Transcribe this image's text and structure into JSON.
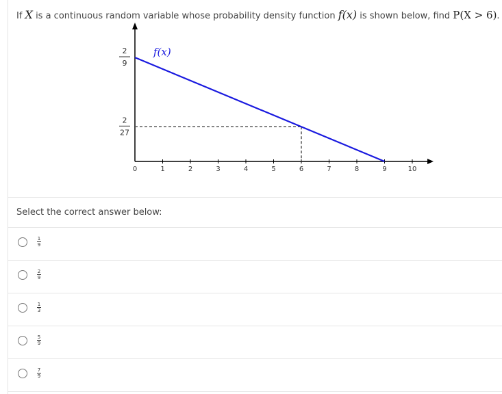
{
  "question": {
    "prefix": "If ",
    "var": "X",
    "middle": " is a continuous random variable whose probability density function ",
    "fx": "f(x)",
    "suffix_a": " is shown below, find ",
    "prob": "P(X > 6)",
    "suffix_b": "."
  },
  "chart_data": {
    "type": "line",
    "curve_label": "f(x)",
    "x_ticks": [
      "0",
      "1",
      "2",
      "3",
      "4",
      "5",
      "6",
      "7",
      "8",
      "9",
      "10"
    ],
    "xlim": [
      0,
      10
    ],
    "y_ticks": [
      {
        "value": 0.2222,
        "num": "2",
        "den": "9"
      },
      {
        "value": 0.0741,
        "num": "2",
        "den": "27"
      }
    ],
    "series": [
      {
        "points": [
          [
            0,
            0.2222
          ],
          [
            9,
            0
          ]
        ]
      }
    ],
    "reference": {
      "x": 6,
      "y": 0.0741
    },
    "colors": {
      "line": "#1a1adf",
      "axis": "#000000",
      "dashed": "#555555"
    }
  },
  "prompt": "Select the correct answer below:",
  "choices": [
    {
      "num": "1",
      "den": "9"
    },
    {
      "num": "2",
      "den": "9"
    },
    {
      "num": "1",
      "den": "3"
    },
    {
      "num": "5",
      "den": "9"
    },
    {
      "num": "7",
      "den": "9"
    }
  ]
}
